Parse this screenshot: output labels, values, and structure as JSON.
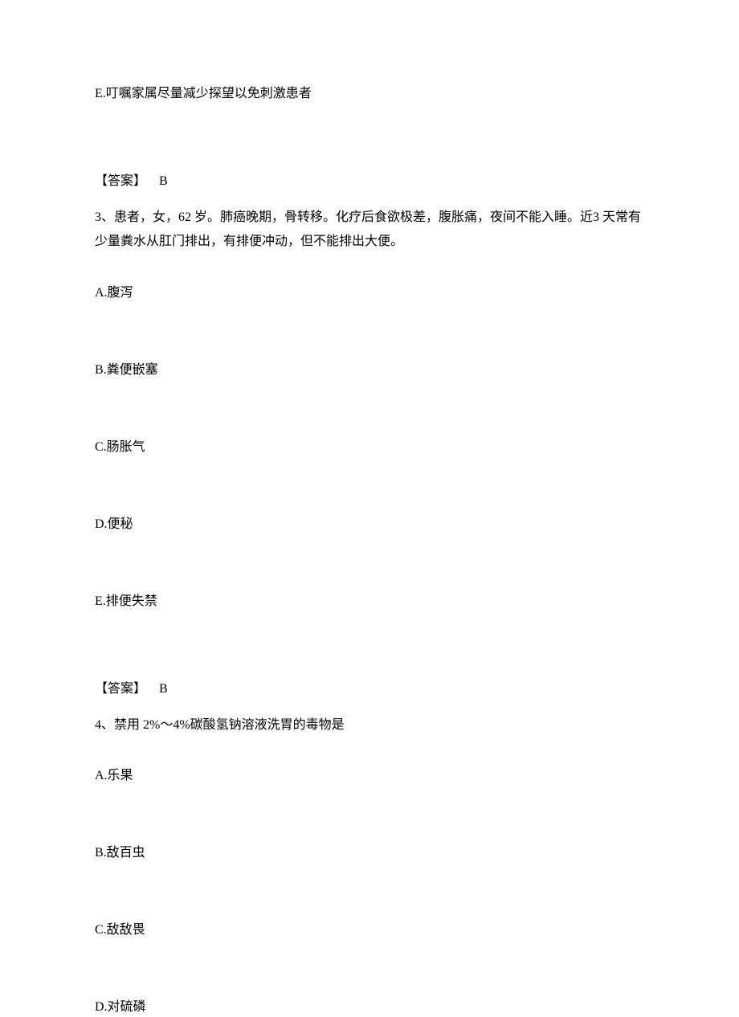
{
  "q2_option_e": "E.叮嘱家属尽量减少探望以免刺激患者",
  "q2_answer_label": "【答案】",
  "q2_answer_value": "B",
  "q3_stem": "3、患者，女，62 岁。肺癌晚期，骨转移。化疗后食欲极差，腹胀痛，夜间不能入睡。近3 天常有少量粪水从肛门排出，有排便冲动，但不能排出大便。",
  "q3_options": {
    "a": "A.腹泻",
    "b": "B.粪便嵌塞",
    "c": "C.肠胀气",
    "d": "D.便秘",
    "e": "E.排便失禁"
  },
  "q3_answer_label": "【答案】",
  "q3_answer_value": "B",
  "q4_stem": "4、禁用 2%～4%碳酸氢钠溶液洗胃的毒物是",
  "q4_options": {
    "a": "A.乐果",
    "b": "B.敌百虫",
    "c": "C.敌敌畏",
    "d": "D.对硫磷"
  }
}
